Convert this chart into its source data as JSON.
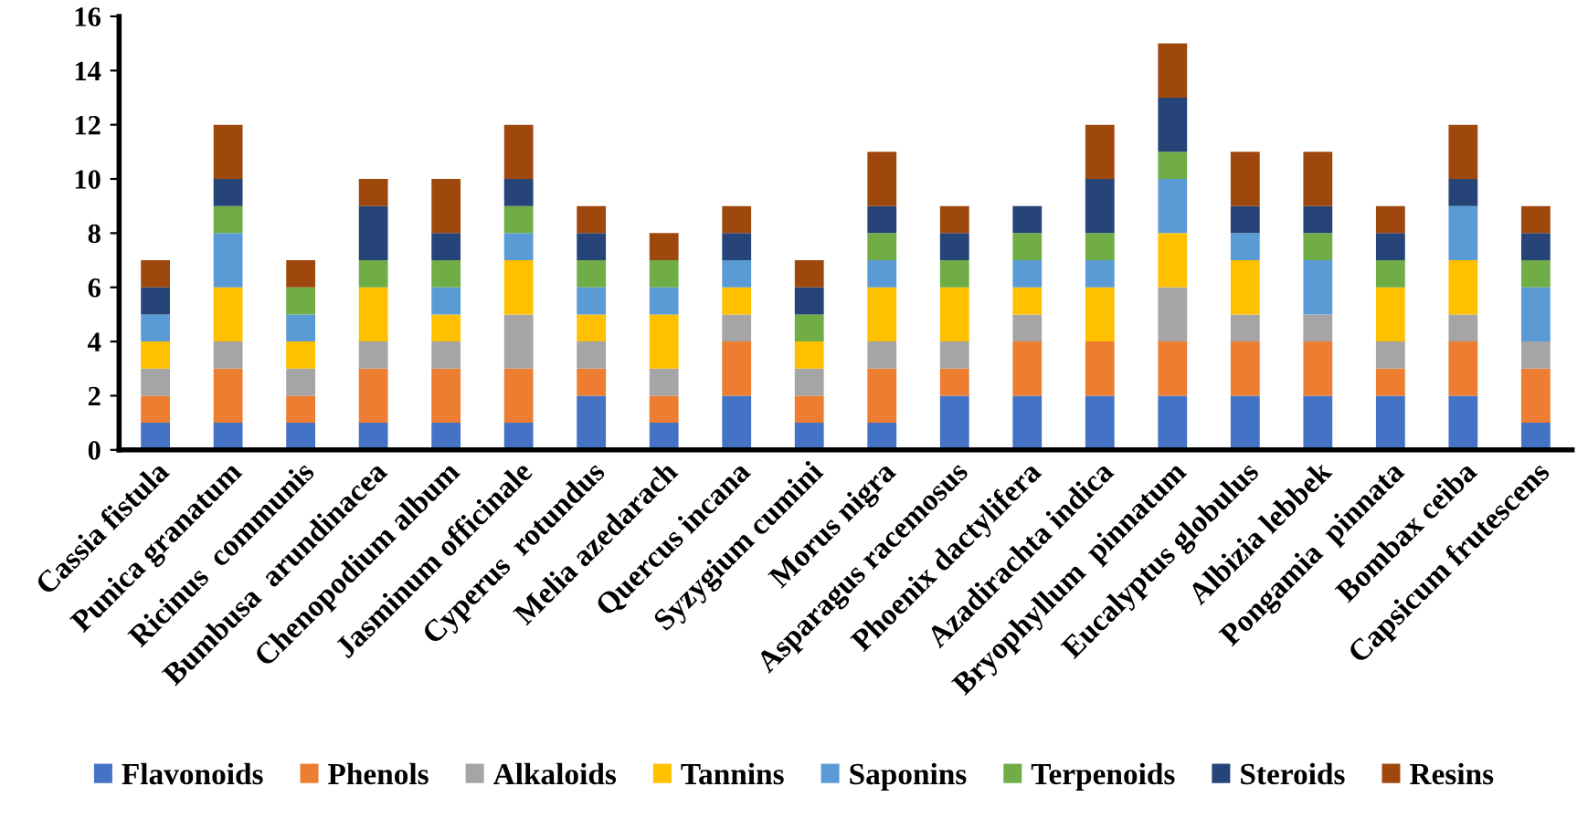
{
  "chart_data": {
    "type": "bar",
    "stacked": true,
    "categories": [
      "Cassia fistula",
      "Punica granatum",
      "Ricinus  communis",
      "Bumbusa  arundinacea",
      "Chenopodium album",
      "Jasminum officinale",
      "Cyperus  rotundus",
      "Melia azedarach",
      "Quercus incana",
      "Syzygium cumini",
      "Morus nigra",
      "Asparagus racemosus",
      "Phoenix dactylifera",
      "Azadirachta indica",
      "Bryophyllum  pinnatum",
      "Eucalyptus globulus",
      "Albizia lebbek",
      "Pongamia  pinnata",
      "Bombax ceiba",
      "Capsicum frutescens"
    ],
    "series": [
      {
        "name": "Flavonoids",
        "color": "#4472c4",
        "values": [
          1,
          1,
          1,
          1,
          1,
          1,
          2,
          1,
          2,
          1,
          1,
          2,
          2,
          2,
          2,
          2,
          2,
          2,
          2,
          1
        ]
      },
      {
        "name": "Phenols",
        "color": "#ed7d31",
        "values": [
          1,
          2,
          1,
          2,
          2,
          2,
          1,
          1,
          2,
          1,
          2,
          1,
          2,
          2,
          2,
          2,
          2,
          1,
          2,
          2
        ]
      },
      {
        "name": "Alkaloids",
        "color": "#a5a5a5",
        "values": [
          1,
          1,
          1,
          1,
          1,
          2,
          1,
          1,
          1,
          1,
          1,
          1,
          1,
          0,
          2,
          1,
          1,
          1,
          1,
          1
        ]
      },
      {
        "name": "Tannins",
        "color": "#ffc000",
        "values": [
          1,
          2,
          1,
          2,
          1,
          2,
          1,
          2,
          1,
          1,
          2,
          2,
          1,
          2,
          2,
          2,
          0,
          2,
          2,
          0
        ]
      },
      {
        "name": "Saponins",
        "color": "#5b9bd5",
        "values": [
          1,
          2,
          1,
          0,
          1,
          1,
          1,
          1,
          1,
          0,
          1,
          0,
          1,
          1,
          2,
          1,
          2,
          0,
          2,
          2
        ]
      },
      {
        "name": "Terpenoids",
        "color": "#70ad47",
        "values": [
          0,
          1,
          1,
          1,
          1,
          1,
          1,
          1,
          0,
          1,
          1,
          1,
          1,
          1,
          1,
          0,
          1,
          1,
          0,
          1
        ]
      },
      {
        "name": "Steroids",
        "color": "#264478",
        "values": [
          1,
          1,
          0,
          2,
          1,
          1,
          1,
          0,
          1,
          1,
          1,
          1,
          1,
          2,
          2,
          1,
          1,
          1,
          1,
          1
        ]
      },
      {
        "name": "Resins",
        "color": "#9e480e",
        "values": [
          1,
          2,
          1,
          1,
          2,
          2,
          1,
          1,
          1,
          1,
          2,
          1,
          0,
          2,
          2,
          2,
          2,
          1,
          2,
          1
        ]
      }
    ],
    "ylim": [
      0,
      16
    ],
    "yticks": [
      0,
      2,
      4,
      6,
      8,
      10,
      12,
      14,
      16
    ],
    "grid": false,
    "legend": "bottom"
  }
}
